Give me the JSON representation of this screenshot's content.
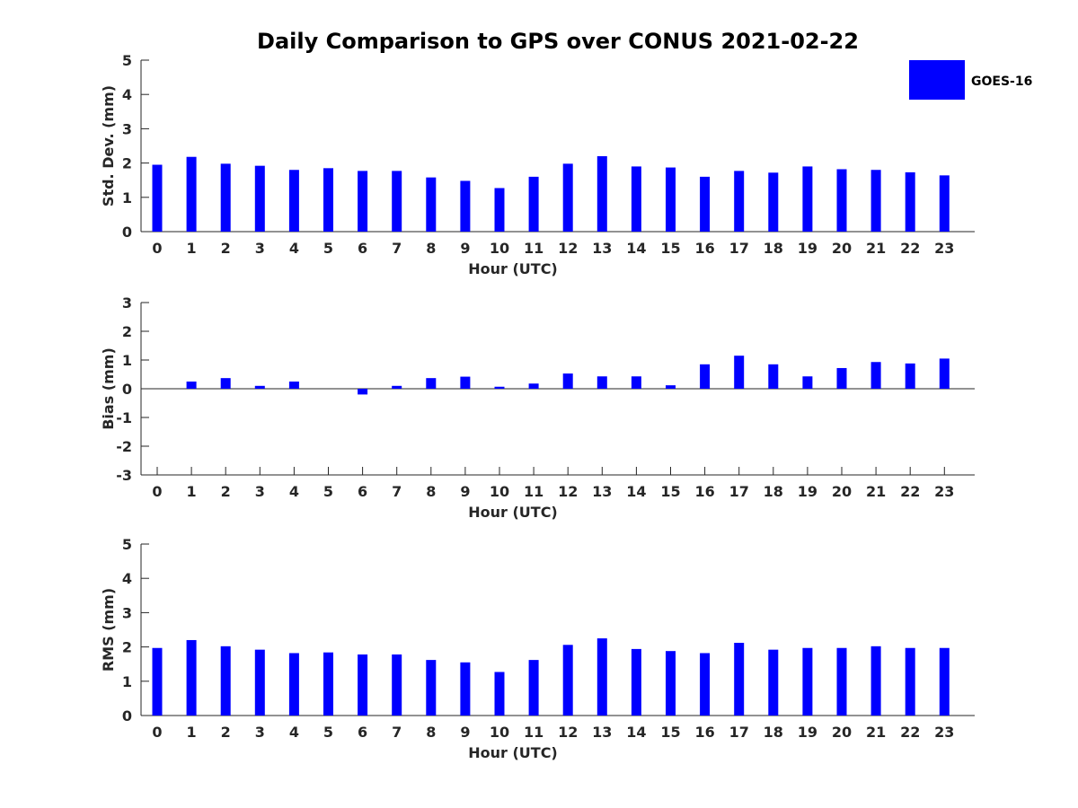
{
  "chart_data": {
    "title": "Daily Comparison to GPS over CONUS 2021-02-22",
    "legend": {
      "entries": [
        "GOES-16"
      ],
      "placement": "top-right"
    },
    "series_color": "#0000ff",
    "panels": [
      {
        "type": "bar",
        "xlabel": "Hour (UTC)",
        "ylabel": "Std. Dev. (mm)",
        "ylim": [
          0,
          5
        ],
        "yticks": [
          "0",
          "1",
          "2",
          "3",
          "4",
          "5"
        ],
        "categories": [
          "0",
          "1",
          "2",
          "3",
          "4",
          "5",
          "6",
          "7",
          "8",
          "9",
          "10",
          "11",
          "12",
          "13",
          "14",
          "15",
          "16",
          "17",
          "18",
          "19",
          "20",
          "21",
          "22",
          "23"
        ],
        "series": [
          {
            "values": [
              1.95,
              2.18,
              1.98,
              1.92,
              1.8,
              1.85,
              1.77,
              1.77,
              1.58,
              1.48,
              1.27,
              1.6,
              1.98,
              2.2,
              1.9,
              1.87,
              1.6,
              1.77,
              1.72,
              1.9,
              1.82,
              1.8,
              1.73,
              1.64
            ]
          }
        ]
      },
      {
        "type": "bar",
        "xlabel": "Hour (UTC)",
        "ylabel": "Bias (mm)",
        "ylim": [
          -3,
          3
        ],
        "yticks": [
          "-3",
          "-2",
          "-1",
          "0",
          "1",
          "2",
          "3"
        ],
        "zero_line": true,
        "categories": [
          "0",
          "1",
          "2",
          "3",
          "4",
          "5",
          "6",
          "7",
          "8",
          "9",
          "10",
          "11",
          "12",
          "13",
          "14",
          "15",
          "16",
          "17",
          "18",
          "19",
          "20",
          "21",
          "22",
          "23"
        ],
        "series": [
          {
            "values": [
              0.0,
              0.25,
              0.37,
              0.1,
              0.25,
              0.0,
              -0.2,
              0.1,
              0.37,
              0.42,
              0.07,
              0.18,
              0.53,
              0.43,
              0.43,
              0.12,
              0.85,
              1.15,
              0.85,
              0.43,
              0.72,
              0.93,
              0.88,
              1.05
            ]
          }
        ]
      },
      {
        "type": "bar",
        "xlabel": "Hour (UTC)",
        "ylabel": "RMS (mm)",
        "ylim": [
          0,
          5
        ],
        "yticks": [
          "0",
          "1",
          "2",
          "3",
          "4",
          "5"
        ],
        "categories": [
          "0",
          "1",
          "2",
          "3",
          "4",
          "5",
          "6",
          "7",
          "8",
          "9",
          "10",
          "11",
          "12",
          "13",
          "14",
          "15",
          "16",
          "17",
          "18",
          "19",
          "20",
          "21",
          "22",
          "23"
        ],
        "series": [
          {
            "values": [
              1.97,
              2.2,
              2.02,
              1.92,
              1.82,
              1.84,
              1.78,
              1.78,
              1.62,
              1.55,
              1.27,
              1.62,
              2.06,
              2.25,
              1.94,
              1.88,
              1.82,
              2.12,
              1.92,
              1.97,
              1.97,
              2.02,
              1.97,
              1.97
            ]
          }
        ]
      }
    ]
  }
}
